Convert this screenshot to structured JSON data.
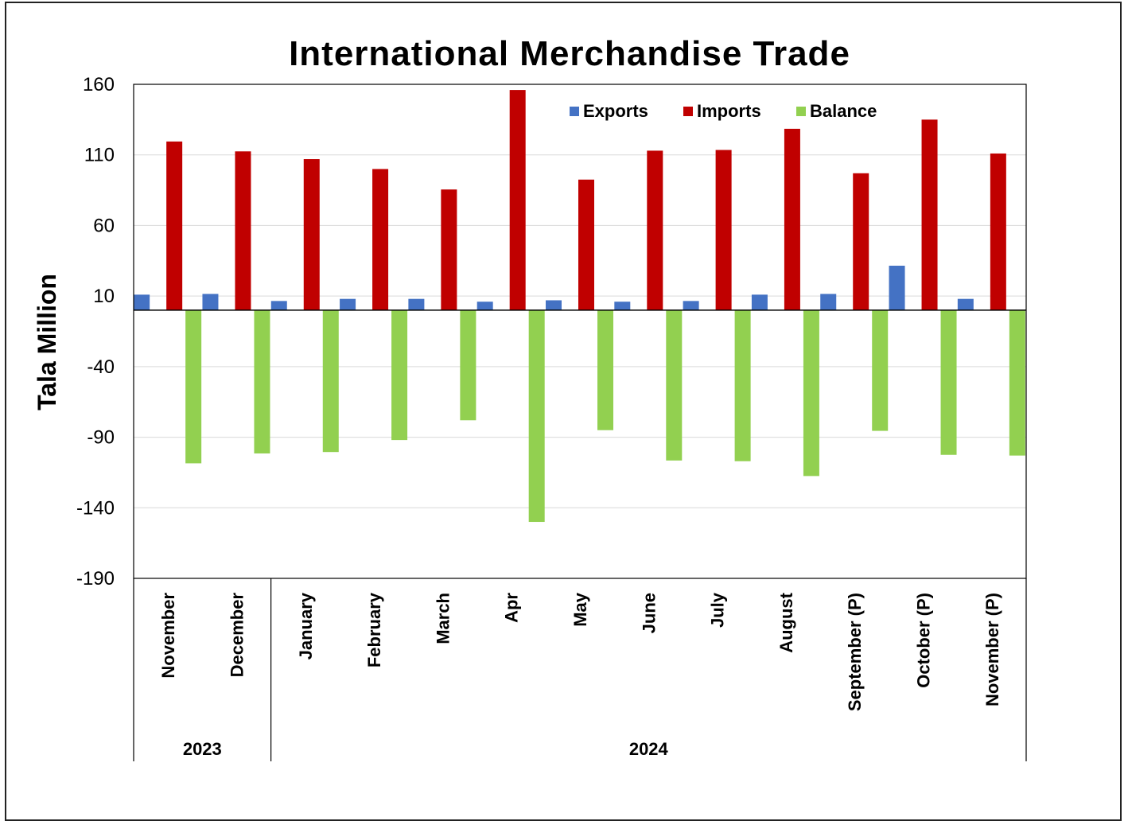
{
  "chart_data": {
    "type": "bar",
    "title": "International Merchandise Trade",
    "ylabel": "Tala Million",
    "xlabel": "",
    "ylim": [
      -190,
      160
    ],
    "yticks": [
      160,
      110,
      60,
      10,
      -40,
      -90,
      -140,
      -190
    ],
    "grid": true,
    "legend_position": "top-right",
    "categories": [
      "November",
      "December",
      "January",
      "February",
      "March",
      "Apr",
      "May",
      "June",
      "July",
      "August",
      "September (P)",
      "October (P)",
      "November (P)"
    ],
    "groups": [
      {
        "label": "2023",
        "count": 2
      },
      {
        "label": "2024",
        "count": 11
      }
    ],
    "series": [
      {
        "name": "Exports",
        "color": "#4472C4",
        "values": [
          11,
          11.5,
          6.5,
          8,
          8,
          6,
          7,
          6,
          6.5,
          11,
          11.5,
          31.5,
          8
        ]
      },
      {
        "name": "Imports",
        "color": "#C00000",
        "values": [
          119.5,
          112.5,
          107,
          100,
          85.5,
          156,
          92.5,
          113,
          113.5,
          128.5,
          97,
          135,
          111
        ]
      },
      {
        "name": "Balance",
        "color": "#92D050",
        "values": [
          -108.5,
          -101.5,
          -100.5,
          -92,
          -78,
          -150,
          -85,
          -106.5,
          -107,
          -117.5,
          -85.5,
          -102.5,
          -103
        ]
      }
    ]
  }
}
